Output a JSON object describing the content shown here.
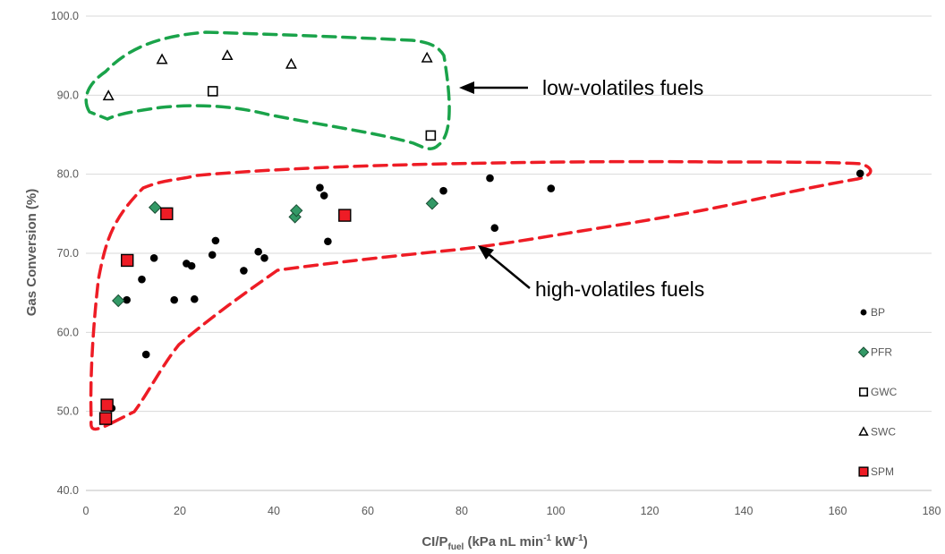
{
  "chart_data": {
    "type": "scatter",
    "xlabel": "CI/P",
    "xlabel_sub": "fuel",
    "xlabel_units": " (kPa nL min",
    "xlabel_sup1": "-1",
    "xlabel_mid": " kW",
    "xlabel_sup2": "-1",
    "xlabel_end": ")",
    "ylabel": "Gas  Conversion (%)",
    "xlim": [
      0,
      180
    ],
    "ylim": [
      40,
      100
    ],
    "xticks": [
      "0",
      "20",
      "40",
      "60",
      "80",
      "100",
      "120",
      "140",
      "160",
      "180"
    ],
    "yticks": [
      "40.0",
      "50.0",
      "60.0",
      "70.0",
      "80.0",
      "90.0",
      "100.0"
    ],
    "grid": "horizontal",
    "legend_position": "right",
    "series": [
      {
        "name": "BP",
        "marker": "circle",
        "color": "#000000",
        "points": [
          [
            5.5,
            50.4
          ],
          [
            8.7,
            64.1
          ],
          [
            11.9,
            66.7
          ],
          [
            12.8,
            57.2
          ],
          [
            14.5,
            69.4
          ],
          [
            18.8,
            64.1
          ],
          [
            21.4,
            68.7
          ],
          [
            22.5,
            68.4
          ],
          [
            23.1,
            64.2
          ],
          [
            26.9,
            69.8
          ],
          [
            27.6,
            71.6
          ],
          [
            33.6,
            67.8
          ],
          [
            36.7,
            70.2
          ],
          [
            38.0,
            69.4
          ],
          [
            49.8,
            78.3
          ],
          [
            50.7,
            77.3
          ],
          [
            51.5,
            71.5
          ],
          [
            76.1,
            77.9
          ],
          [
            86.0,
            79.5
          ],
          [
            87.0,
            73.2
          ],
          [
            99.0,
            78.2
          ],
          [
            164.8,
            80.1
          ]
        ]
      },
      {
        "name": "PFR",
        "marker": "diamond",
        "color": "#339966",
        "points": [
          [
            6.9,
            64.0
          ],
          [
            14.7,
            75.8
          ],
          [
            44.5,
            74.6
          ],
          [
            44.8,
            75.4
          ],
          [
            73.7,
            76.3
          ]
        ]
      },
      {
        "name": "GWC",
        "marker": "square-open",
        "color": "#000000",
        "points": [
          [
            27.0,
            90.5
          ],
          [
            73.4,
            84.9
          ]
        ]
      },
      {
        "name": "SWC",
        "marker": "triangle-open",
        "color": "#000000",
        "points": [
          [
            4.8,
            89.9
          ],
          [
            16.2,
            94.5
          ],
          [
            30.1,
            95.0
          ],
          [
            43.7,
            93.9
          ],
          [
            72.6,
            94.7
          ]
        ]
      },
      {
        "name": "SPM",
        "marker": "square",
        "color": "#ee1c25",
        "points": [
          [
            4.2,
            49.1
          ],
          [
            4.5,
            50.8
          ],
          [
            8.8,
            69.1
          ],
          [
            17.2,
            75.0
          ],
          [
            55.1,
            74.8
          ]
        ]
      }
    ],
    "annotations": [
      {
        "label": "low-volatiles fuels",
        "outline_color": "#1aa34a"
      },
      {
        "label": "high-volatiles fuels",
        "outline_color": "#ee1c25"
      }
    ]
  }
}
